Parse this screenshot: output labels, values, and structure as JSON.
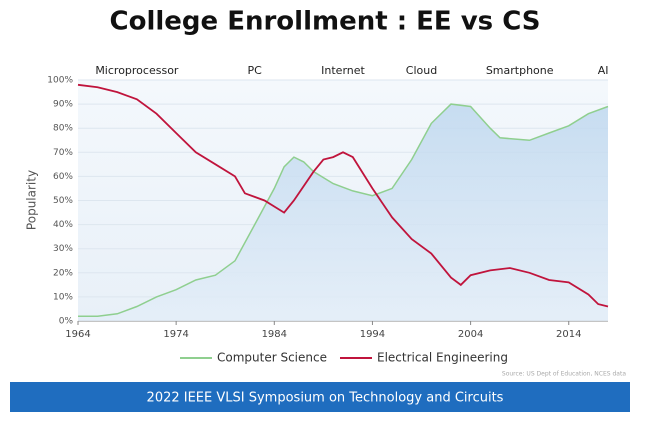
{
  "chart_data": {
    "type": "line",
    "title": "College Enrollment : EE vs CS",
    "y_label": "Popularity",
    "source": "Source: US Dept of Education, NCES data",
    "footer": "2022 IEEE VLSI Symposium on Technology and Circuits",
    "annotations": [
      {
        "text": "Microprocessor",
        "x": 1970
      },
      {
        "text": "PC",
        "x": 1982
      },
      {
        "text": "Internet",
        "x": 1991
      },
      {
        "text": "Cloud",
        "x": 1999
      },
      {
        "text": "Smartphone",
        "x": 2009
      },
      {
        "text": "AI",
        "x": 2017.5
      }
    ],
    "series": [
      {
        "name": "Computer Science",
        "color": "#8fcf8f",
        "x": [
          1964,
          1966,
          1968,
          1970,
          1972,
          1974,
          1976,
          1978,
          1980,
          1982,
          1984,
          1985,
          1986,
          1987,
          1988,
          1990,
          1992,
          1994,
          1996,
          1998,
          2000,
          2002,
          2004,
          2006,
          2007,
          2010,
          2012,
          2014,
          2016,
          2018
        ],
        "values": [
          2,
          2,
          3,
          6,
          10,
          13,
          17,
          19,
          25,
          40,
          55,
          64,
          68,
          66,
          62,
          57,
          54,
          52,
          55,
          67,
          82,
          90,
          89,
          80,
          76,
          75,
          78,
          81,
          86,
          89
        ]
      },
      {
        "name": "Electrical Engineering",
        "color": "#c0143c",
        "x": [
          1964,
          1966,
          1968,
          1970,
          1972,
          1974,
          1976,
          1978,
          1980,
          1981,
          1983,
          1985,
          1986,
          1988,
          1989,
          1990,
          1991,
          1992,
          1994,
          1996,
          1998,
          2000,
          2002,
          2003,
          2004,
          2006,
          2008,
          2010,
          2012,
          2014,
          2016,
          2017,
          2018
        ],
        "values": [
          98,
          97,
          95,
          92,
          86,
          78,
          70,
          65,
          60,
          53,
          50,
          45,
          50,
          62,
          67,
          68,
          70,
          68,
          55,
          43,
          34,
          28,
          18,
          15,
          19,
          21,
          22,
          20,
          17,
          16,
          11,
          7,
          6
        ]
      }
    ],
    "xlim": [
      1964,
      2018
    ],
    "xticks": [
      1964,
      1974,
      1984,
      1994,
      2004,
      2014
    ],
    "ylim": [
      0,
      100
    ],
    "yticks": [
      {
        "value": 0,
        "label": "0%"
      },
      {
        "value": 10,
        "label": "10%"
      },
      {
        "value": 20,
        "label": "20%"
      },
      {
        "value": 30,
        "label": "30%"
      },
      {
        "value": 40,
        "label": "40%"
      },
      {
        "value": 50,
        "label": "50%"
      },
      {
        "value": 60,
        "label": "60%"
      },
      {
        "value": 70,
        "label": "70%"
      },
      {
        "value": 80,
        "label": "80%"
      },
      {
        "value": 90,
        "label": "90%"
      },
      {
        "value": 100,
        "label": "100%"
      }
    ],
    "grid": true
  }
}
